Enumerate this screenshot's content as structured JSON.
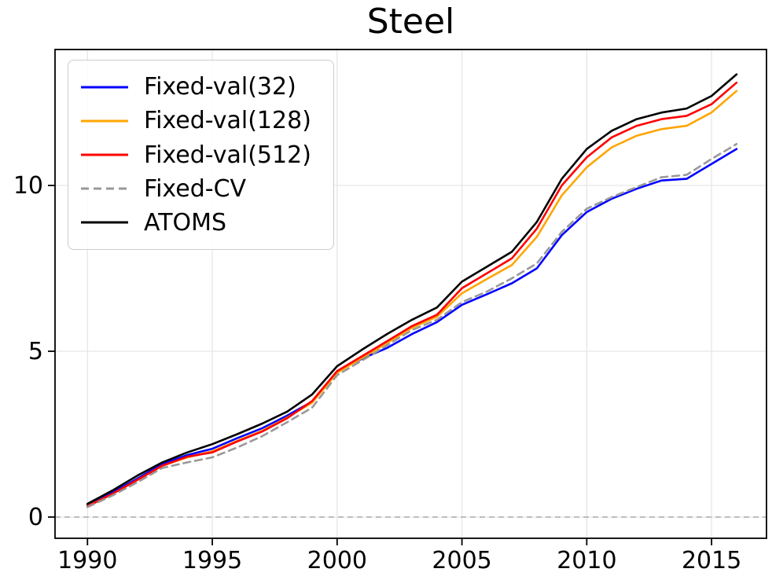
{
  "title": "Steel",
  "chart_data": {
    "type": "line",
    "title": "Steel",
    "xlabel": "",
    "ylabel": "",
    "xlim": [
      1988.7,
      2017.2
    ],
    "ylim": [
      -0.64,
      14.1
    ],
    "x_ticks": [
      1990,
      1995,
      2000,
      2005,
      2010,
      2015
    ],
    "y_ticks": [
      0,
      5,
      10
    ],
    "grid": true,
    "grid_color": "#e6e6e6",
    "zero_line": {
      "y": 0,
      "color": "#aaaaaa",
      "style": "dashed"
    },
    "legend_position": "upper-left",
    "x": [
      1990,
      1991,
      1992,
      1993,
      1994,
      1995,
      1996,
      1997,
      1998,
      1999,
      2000,
      2001,
      2002,
      2003,
      2004,
      2005,
      2006,
      2007,
      2008,
      2009,
      2010,
      2011,
      2012,
      2013,
      2014,
      2015,
      2016
    ],
    "series": [
      {
        "name": "Fixed-val(32)",
        "color": "#0000ff",
        "style": "solid",
        "values": [
          0.36,
          0.74,
          1.16,
          1.6,
          1.87,
          2.06,
          2.38,
          2.68,
          3.06,
          3.48,
          4.4,
          4.78,
          5.1,
          5.52,
          5.88,
          6.4,
          6.72,
          7.05,
          7.5,
          8.5,
          9.2,
          9.6,
          9.9,
          10.15,
          10.2,
          10.65,
          11.1
        ]
      },
      {
        "name": "Fixed-val(128)",
        "color": "#ffa500",
        "style": "solid",
        "values": [
          0.33,
          0.7,
          1.12,
          1.55,
          1.8,
          1.98,
          2.3,
          2.6,
          3.0,
          3.45,
          4.35,
          4.8,
          5.25,
          5.71,
          6.04,
          6.75,
          7.18,
          7.6,
          8.45,
          9.7,
          10.55,
          11.15,
          11.5,
          11.7,
          11.8,
          12.2,
          12.85
        ]
      },
      {
        "name": "Fixed-val(512)",
        "color": "#ff0000",
        "style": "solid",
        "values": [
          0.32,
          0.7,
          1.12,
          1.55,
          1.82,
          1.95,
          2.28,
          2.58,
          2.98,
          3.5,
          4.4,
          4.85,
          5.3,
          5.76,
          6.1,
          6.9,
          7.35,
          7.8,
          8.7,
          10.0,
          10.85,
          11.45,
          11.8,
          12.0,
          12.1,
          12.45,
          13.1
        ]
      },
      {
        "name": "Fixed-CV",
        "color": "#999999",
        "style": "dashed",
        "values": [
          0.3,
          0.65,
          1.05,
          1.48,
          1.65,
          1.8,
          2.1,
          2.44,
          2.86,
          3.3,
          4.28,
          4.72,
          5.18,
          5.64,
          5.95,
          6.48,
          6.8,
          7.2,
          7.65,
          8.6,
          9.3,
          9.65,
          9.95,
          10.25,
          10.32,
          10.8,
          11.25
        ]
      },
      {
        "name": "ATOMS",
        "color": "#000000",
        "style": "solid",
        "values": [
          0.4,
          0.8,
          1.25,
          1.65,
          1.95,
          2.2,
          2.5,
          2.82,
          3.18,
          3.7,
          4.55,
          5.05,
          5.52,
          5.95,
          6.32,
          7.1,
          7.55,
          8.0,
          8.9,
          10.2,
          11.1,
          11.65,
          12.0,
          12.2,
          12.32,
          12.7,
          13.35
        ]
      }
    ]
  }
}
